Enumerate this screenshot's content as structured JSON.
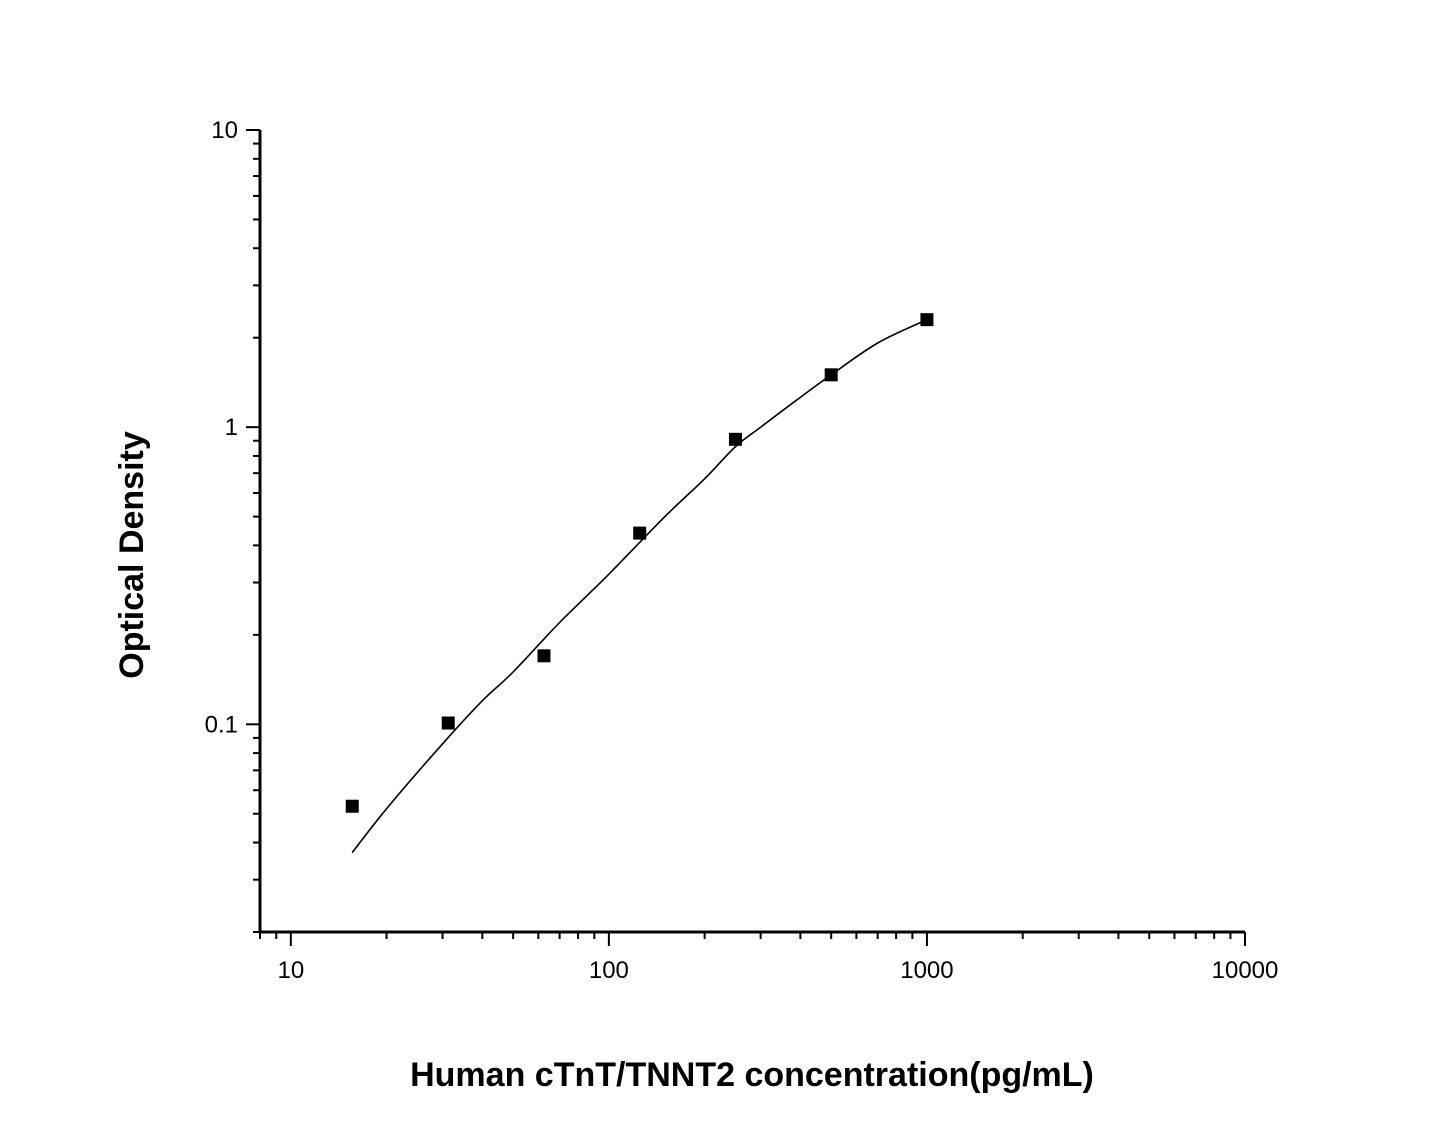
{
  "chart_data": {
    "type": "scatter",
    "title": "",
    "xlabel": "Human cTnT/TNNT2 concentration(pg/mL)",
    "ylabel": "Optical Density",
    "x_scale": "log",
    "y_scale": "log",
    "xlim": [
      8,
      10000
    ],
    "ylim": [
      0.02,
      10
    ],
    "x_ticks": [
      10,
      100,
      1000,
      10000
    ],
    "x_tick_labels": [
      "10",
      "100",
      "1000",
      "10000"
    ],
    "y_ticks": [
      0.1,
      1,
      10
    ],
    "y_tick_labels": [
      "0.1",
      "1",
      "10"
    ],
    "grid": false,
    "legend": "none",
    "series": [
      {
        "kind": "points",
        "marker": "square",
        "color": "#000000",
        "x": [
          15.6,
          31.25,
          62.5,
          125,
          250,
          500,
          1000
        ],
        "y": [
          0.053,
          0.101,
          0.17,
          0.44,
          0.91,
          1.5,
          2.3
        ]
      },
      {
        "kind": "fit-curve",
        "color": "#000000",
        "x": [
          15.6,
          20,
          30,
          40,
          50,
          70,
          100,
          150,
          200,
          250,
          300,
          400,
          500,
          700,
          1000
        ],
        "y": [
          0.037,
          0.052,
          0.086,
          0.12,
          0.15,
          0.22,
          0.32,
          0.5,
          0.67,
          0.86,
          1.0,
          1.26,
          1.5,
          1.92,
          2.3
        ]
      }
    ]
  }
}
